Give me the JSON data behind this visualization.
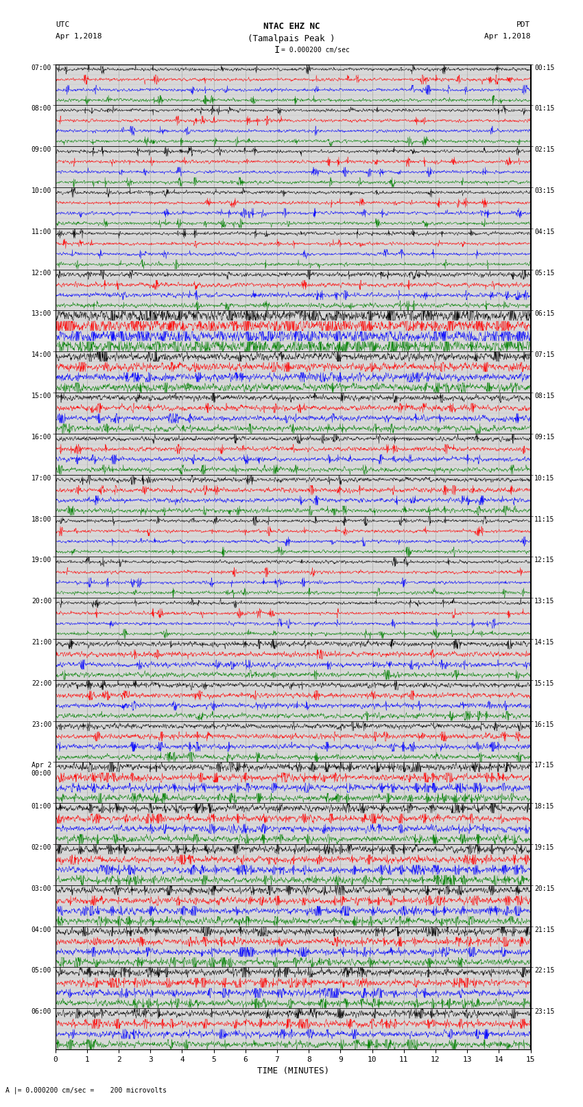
{
  "title_line1": "NTAC EHZ NC",
  "title_line2": "(Tamalpais Peak )",
  "scale_label": "= 0.000200 cm/sec",
  "left_label_line1": "UTC",
  "left_label_line2": "Apr 1,2018",
  "right_label_line1": "PDT",
  "right_label_line2": "Apr 1,2018",
  "bottom_label": "A |= 0.000200 cm/sec =    200 microvolts",
  "xlabel": "TIME (MINUTES)",
  "utc_times": [
    "07:00",
    "08:00",
    "09:00",
    "10:00",
    "11:00",
    "12:00",
    "13:00",
    "14:00",
    "15:00",
    "16:00",
    "17:00",
    "18:00",
    "19:00",
    "20:00",
    "21:00",
    "22:00",
    "23:00",
    "Apr 2\n00:00",
    "01:00",
    "02:00",
    "03:00",
    "04:00",
    "05:00",
    "06:00"
  ],
  "pdt_times": [
    "00:15",
    "01:15",
    "02:15",
    "03:15",
    "04:15",
    "05:15",
    "06:15",
    "07:15",
    "08:15",
    "09:15",
    "10:15",
    "11:15",
    "12:15",
    "13:15",
    "14:15",
    "15:15",
    "16:15",
    "17:15",
    "18:15",
    "19:15",
    "20:15",
    "21:15",
    "22:15",
    "23:15"
  ],
  "n_rows": 24,
  "traces_per_row": 4,
  "colors": [
    "black",
    "red",
    "blue",
    "green"
  ],
  "bg_color": "white",
  "plot_bg_color": "#d8d8d8",
  "grid_color": "#888888",
  "sep_line_color": "black",
  "fig_width": 8.5,
  "fig_height": 16.13,
  "dpi": 100,
  "xmin": 0,
  "xmax": 15,
  "xticks": [
    0,
    1,
    2,
    3,
    4,
    5,
    6,
    7,
    8,
    9,
    10,
    11,
    12,
    13,
    14,
    15
  ],
  "n_points": 1800,
  "base_amp": 0.06,
  "seed": 12345,
  "trace_lw": 0.35
}
